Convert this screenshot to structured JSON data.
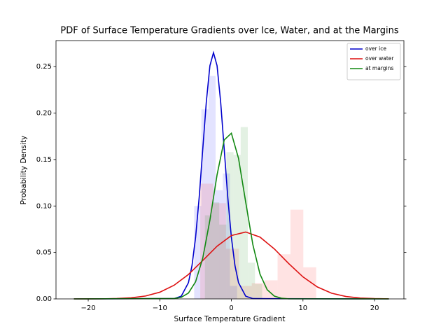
{
  "chart_data": {
    "type": "histogram",
    "title": "PDF of Surface Temperature Gradients over Ice, Water, and at the Margins",
    "x_label": "Surface Temperature Gradient",
    "y_label": "Probability Density",
    "xlim": [
      -24.5,
      24.1
    ],
    "ylim": [
      0,
      0.278
    ],
    "xticks": [
      {
        "value": -20,
        "label": "−20"
      },
      {
        "value": -10,
        "label": "−10"
      },
      0,
      10,
      20
    ],
    "yticks": [
      {
        "value": 0,
        "label": "0.00"
      },
      {
        "value": 0.05,
        "label": "0.05"
      },
      {
        "value": 0.1,
        "label": "0.10"
      },
      {
        "value": 0.15,
        "label": "0.15"
      },
      {
        "value": 0.2,
        "label": "0.20"
      },
      {
        "value": 0.25,
        "label": "0.25"
      }
    ],
    "legend": "upper right",
    "histograms": [
      {
        "color": "#0000ff",
        "bins": [
          -5.2,
          -4.2,
          -3.2,
          -2.2,
          -1.2,
          -0.2,
          0.8
        ],
        "values": [
          0.1,
          0.204,
          0.24,
          0.117,
          0.135,
          0.014
        ]
      },
      {
        "color": "#ff0000",
        "bins": [
          -4.35,
          -2.55,
          -0.75,
          1.05,
          2.85,
          4.65,
          6.45,
          8.25,
          10.05,
          11.85
        ],
        "values": [
          0.124,
          0.103,
          0.054,
          0.014,
          0.017,
          0.02,
          0.048,
          0.096,
          0.034
        ]
      },
      {
        "color": "#008000",
        "bins": [
          -3.7,
          -2.7,
          -1.7,
          -0.7,
          0.3,
          1.3,
          2.3,
          3.3,
          4.3
        ],
        "values": [
          0.09,
          0.104,
          0.08,
          0.158,
          0.155,
          0.185,
          0.039,
          0.016
        ]
      }
    ],
    "series": [
      {
        "name": "over ice",
        "color": "#0000cc",
        "x": [
          -22,
          -8,
          -7,
          -6,
          -5.5,
          -5,
          -4.5,
          -4,
          -3.5,
          -3,
          -2.5,
          -2,
          -1.5,
          -1,
          -0.5,
          0,
          0.5,
          1,
          2,
          3,
          22
        ],
        "values": [
          0,
          0.0003,
          0.0029,
          0.0174,
          0.0359,
          0.0661,
          0.109,
          0.161,
          0.212,
          0.251,
          0.265,
          0.251,
          0.212,
          0.161,
          0.109,
          0.0661,
          0.0359,
          0.0174,
          0.0029,
          0.0003,
          0
        ]
      },
      {
        "name": "over water",
        "color": "#dd1111",
        "x": [
          -22,
          -20,
          -18,
          -16,
          -14,
          -12,
          -10,
          -8,
          -6,
          -4,
          -2,
          0,
          2,
          4,
          6,
          8,
          10,
          12,
          14,
          16,
          18,
          20,
          22
        ],
        "values": [
          0,
          3e-05,
          0.0001,
          0.0004,
          0.0012,
          0.0031,
          0.0072,
          0.0147,
          0.0263,
          0.0413,
          0.0567,
          0.0682,
          0.072,
          0.0665,
          0.0538,
          0.0381,
          0.0237,
          0.0129,
          0.0061,
          0.0026,
          0.0009,
          0.0003,
          0.0001
        ]
      },
      {
        "name": "at margins",
        "color": "#118811",
        "x": [
          -22,
          -8,
          -7,
          -6,
          -5,
          -4,
          -3,
          -2,
          -1,
          0,
          1,
          2,
          3,
          4,
          5,
          6,
          7,
          8,
          22
        ],
        "values": [
          0,
          0.0004,
          0.0017,
          0.0063,
          0.0184,
          0.0438,
          0.0848,
          0.1335,
          0.1711,
          0.1783,
          0.1512,
          0.1042,
          0.0584,
          0.0266,
          0.0099,
          0.003,
          0.0007,
          0.0001,
          0
        ]
      }
    ]
  }
}
